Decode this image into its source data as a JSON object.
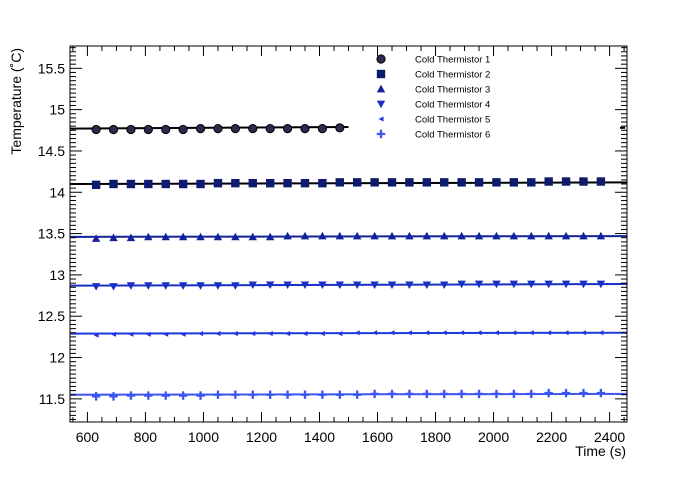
{
  "chart_data": {
    "type": "scatter",
    "title": "",
    "xlabel": "Time (s)",
    "ylabel": "Temperature (˚C)",
    "xlim": [
      540,
      2460
    ],
    "ylim": [
      11.22,
      15.77
    ],
    "x_ticks": [
      600,
      800,
      1000,
      1200,
      1400,
      1600,
      1800,
      2000,
      2200,
      2400
    ],
    "x_tick_labels": [
      "600",
      "800",
      "1000",
      "1200",
      "1400",
      "1600",
      "1800",
      "2000",
      "2200",
      "2400"
    ],
    "y_ticks": [
      11.5,
      12,
      12.5,
      13,
      13.5,
      14,
      14.5,
      15,
      15.5
    ],
    "y_tick_labels": [
      "11.5",
      "12",
      "12.5",
      "13",
      "13.5",
      "14",
      "14.5",
      "15",
      "15.5"
    ],
    "grid": false,
    "legend_position": "top-right",
    "series": [
      {
        "name": "Cold Thermistor 1",
        "marker": "circle",
        "color": "#2b2b4e",
        "fit": {
          "x": [
            540,
            1500
          ],
          "y": [
            14.77,
            14.79
          ]
        },
        "x": [
          630,
          690,
          750,
          810,
          870,
          930,
          990,
          1050,
          1110,
          1170,
          1230,
          1290,
          1350,
          1410,
          1470
        ],
        "y": [
          14.76,
          14.76,
          14.76,
          14.76,
          14.76,
          14.76,
          14.77,
          14.77,
          14.77,
          14.77,
          14.77,
          14.77,
          14.77,
          14.77,
          14.78
        ]
      },
      {
        "name": "Cold Thermistor 2",
        "marker": "square",
        "color": "#0d1a6e",
        "fit": {
          "x": [
            540,
            2460
          ],
          "y": [
            14.1,
            14.12
          ]
        },
        "x": [
          630,
          690,
          750,
          810,
          870,
          930,
          990,
          1050,
          1110,
          1170,
          1230,
          1290,
          1350,
          1410,
          1470,
          1530,
          1590,
          1650,
          1710,
          1770,
          1830,
          1890,
          1950,
          2010,
          2070,
          2130,
          2190,
          2250,
          2310,
          2370
        ],
        "y": [
          14.09,
          14.1,
          14.1,
          14.1,
          14.1,
          14.1,
          14.1,
          14.11,
          14.11,
          14.11,
          14.11,
          14.11,
          14.11,
          14.11,
          14.12,
          14.12,
          14.12,
          14.12,
          14.12,
          14.12,
          14.12,
          14.12,
          14.12,
          14.12,
          14.12,
          14.12,
          14.13,
          14.13,
          14.13,
          14.13
        ]
      },
      {
        "name": "Cold Thermistor 3",
        "marker": "triangle-up",
        "color": "#12229a",
        "fit": {
          "x": [
            540,
            2460
          ],
          "y": [
            13.46,
            13.47
          ]
        },
        "x": [
          630,
          690,
          750,
          810,
          870,
          930,
          990,
          1050,
          1110,
          1170,
          1230,
          1290,
          1350,
          1410,
          1470,
          1530,
          1590,
          1650,
          1710,
          1770,
          1830,
          1890,
          1950,
          2010,
          2070,
          2130,
          2190,
          2250,
          2310,
          2370
        ],
        "y": [
          13.44,
          13.45,
          13.45,
          13.46,
          13.46,
          13.46,
          13.46,
          13.46,
          13.46,
          13.46,
          13.46,
          13.47,
          13.47,
          13.47,
          13.47,
          13.47,
          13.47,
          13.47,
          13.47,
          13.47,
          13.47,
          13.47,
          13.47,
          13.47,
          13.47,
          13.47,
          13.47,
          13.47,
          13.47,
          13.47
        ]
      },
      {
        "name": "Cold Thermistor 4",
        "marker": "triangle-down",
        "color": "#1a2fc4",
        "fit": {
          "x": [
            540,
            2460
          ],
          "y": [
            12.87,
            12.89
          ]
        },
        "x": [
          630,
          690,
          750,
          810,
          870,
          930,
          990,
          1050,
          1110,
          1170,
          1230,
          1290,
          1350,
          1410,
          1470,
          1530,
          1590,
          1650,
          1710,
          1770,
          1830,
          1890,
          1950,
          2010,
          2070,
          2130,
          2190,
          2250,
          2310,
          2370
        ],
        "y": [
          12.86,
          12.86,
          12.87,
          12.87,
          12.87,
          12.87,
          12.87,
          12.87,
          12.87,
          12.88,
          12.88,
          12.88,
          12.88,
          12.88,
          12.88,
          12.88,
          12.88,
          12.88,
          12.88,
          12.88,
          12.88,
          12.89,
          12.89,
          12.89,
          12.89,
          12.89,
          12.89,
          12.89,
          12.89,
          12.89
        ]
      },
      {
        "name": "Cold Thermistor 5",
        "marker": "triangle-left",
        "color": "#1f38dc",
        "fit": {
          "x": [
            540,
            2460
          ],
          "y": [
            12.29,
            12.3
          ]
        },
        "x": [
          630,
          690,
          750,
          810,
          870,
          930,
          990,
          1050,
          1110,
          1170,
          1230,
          1290,
          1350,
          1410,
          1470,
          1530,
          1590,
          1650,
          1710,
          1770,
          1830,
          1890,
          1950,
          2010,
          2070,
          2130,
          2190,
          2250,
          2310,
          2370
        ],
        "y": [
          12.27,
          12.28,
          12.28,
          12.28,
          12.28,
          12.28,
          12.29,
          12.29,
          12.29,
          12.29,
          12.29,
          12.29,
          12.29,
          12.29,
          12.29,
          12.3,
          12.3,
          12.3,
          12.3,
          12.3,
          12.3,
          12.3,
          12.3,
          12.3,
          12.3,
          12.3,
          12.3,
          12.3,
          12.3,
          12.3
        ]
      },
      {
        "name": "Cold Thermistor 6",
        "marker": "plus",
        "color": "#3b55f0",
        "fit": {
          "x": [
            540,
            2460
          ],
          "y": [
            11.55,
            11.56
          ]
        },
        "x": [
          630,
          690,
          750,
          810,
          870,
          930,
          990,
          1050,
          1110,
          1170,
          1230,
          1290,
          1350,
          1410,
          1470,
          1530,
          1590,
          1650,
          1710,
          1770,
          1830,
          1890,
          1950,
          2010,
          2070,
          2130,
          2190,
          2250,
          2310,
          2370
        ],
        "y": [
          11.53,
          11.53,
          11.54,
          11.54,
          11.54,
          11.54,
          11.54,
          11.55,
          11.55,
          11.55,
          11.55,
          11.55,
          11.55,
          11.55,
          11.55,
          11.55,
          11.56,
          11.56,
          11.56,
          11.56,
          11.56,
          11.56,
          11.56,
          11.56,
          11.56,
          11.56,
          11.57,
          11.57,
          11.57,
          11.57
        ]
      }
    ]
  }
}
